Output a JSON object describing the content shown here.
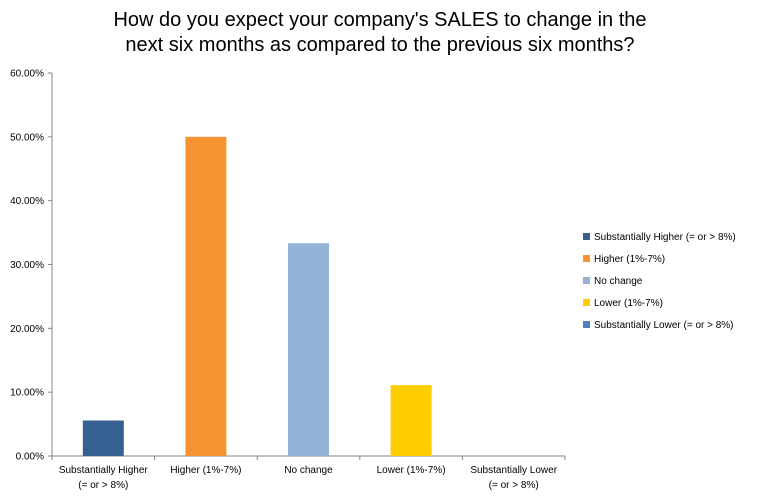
{
  "chart_data": {
    "type": "bar",
    "title_lines": [
      "How do you expect your company's SALES to change in the",
      "next six months as compared to the previous six months?"
    ],
    "categories": [
      "Substantially Higher (= or > 8%)",
      "Higher (1%-7%)",
      "No change",
      "Lower (1%-7%)",
      "Substantially Lower (= or > 8%)"
    ],
    "category_label_lines": [
      [
        "Substantially Higher",
        "(= or > 8%)"
      ],
      [
        "Higher (1%-7%)"
      ],
      [
        "No change"
      ],
      [
        "Lower (1%-7%)"
      ],
      [
        "Substantially Lower",
        "(= or > 8%)"
      ]
    ],
    "values": [
      5.56,
      50.0,
      33.33,
      11.11,
      0.0
    ],
    "colors": [
      "#376092",
      "#F79431",
      "#95B3D7",
      "#FFCC00",
      "#4F81BD"
    ],
    "ylim": [
      0,
      60
    ],
    "yticks": [
      0,
      10,
      20,
      30,
      40,
      50,
      60
    ],
    "ytick_labels": [
      "0.00%",
      "10.00%",
      "20.00%",
      "30.00%",
      "40.00%",
      "50.00%",
      "60.00%"
    ],
    "legend": [
      "Substantially Higher (= or > 8%)",
      "Higher (1%-7%)",
      "No change",
      "Lower (1%-7%)",
      "Substantially Lower (= or > 8%)"
    ],
    "legend_placement": "right",
    "grid": false
  }
}
